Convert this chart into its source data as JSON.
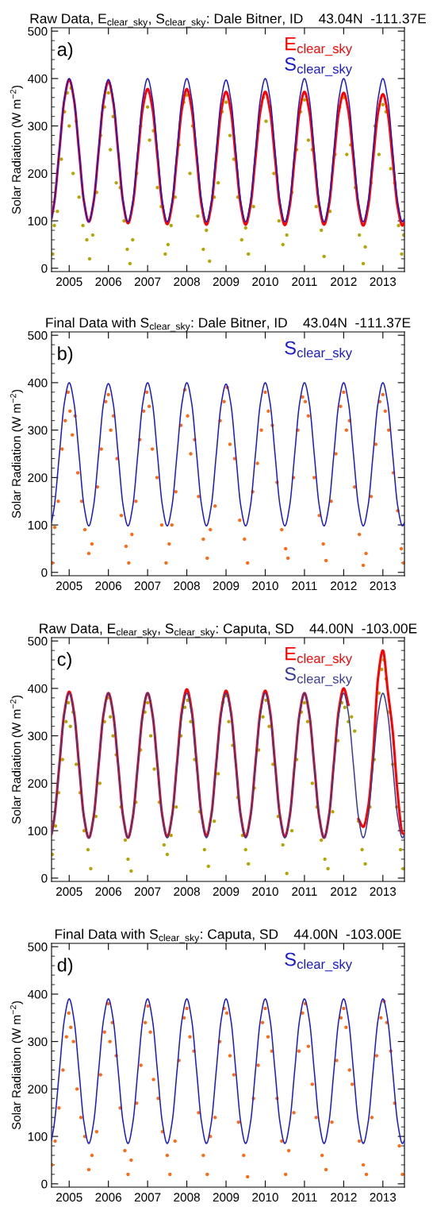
{
  "chart_data": [
    {
      "type": "scatter",
      "title": "Raw Data, E$_{clear_sky}$, S$_{clear_sky}$: Dale Bitner, ID    43.04N  -111.37E",
      "ylabel": "Solar Radiation (W m$^{−2}$)",
      "annotations": [
        "a)"
      ],
      "legend": "top right",
      "xlim": [
        2004.55,
        2013.55
      ],
      "xticks": [
        2005,
        2006,
        2007,
        2008,
        2009,
        2010,
        2011,
        2012,
        2013
      ],
      "ylim": [
        -7,
        507
      ],
      "yticks": [
        0,
        100,
        200,
        300,
        400,
        500
      ],
      "x": [
        2004.55,
        2004.625,
        2004.75,
        2004.875,
        2005,
        2005.125,
        2005.25,
        2005.375,
        2005.5,
        2005.625,
        2005.75,
        2005.875,
        2006,
        2006.125,
        2006.25,
        2006.375,
        2006.5,
        2006.625,
        2006.75,
        2006.875,
        2007,
        2007.125,
        2007.25,
        2007.375,
        2007.5,
        2007.625,
        2007.75,
        2007.875,
        2008,
        2008.125,
        2008.25,
        2008.375,
        2008.5,
        2008.625,
        2008.75,
        2008.875,
        2009,
        2009.125,
        2009.25,
        2009.375,
        2009.5,
        2009.625,
        2009.75,
        2009.875,
        2010,
        2010.125,
        2010.25,
        2010.375,
        2010.5,
        2010.625,
        2010.75,
        2010.875,
        2011,
        2011.125,
        2011.25,
        2011.375,
        2011.5,
        2011.625,
        2011.75,
        2011.875,
        2012,
        2012.125,
        2012.25,
        2012.375,
        2012.5,
        2012.625,
        2012.75,
        2012.875,
        2013,
        2013.125,
        2013.25,
        2013.375,
        2013.5,
        2013.55
      ],
      "series": [
        {
          "marker": "circle",
          "color": "#b5a500",
          "x": [
            2004.58,
            2004.62,
            2004.7,
            2004.8,
            2004.88,
            2004.95,
            2005.0,
            2005.05,
            2005.1,
            2005.18,
            2005.25,
            2005.35,
            2005.45,
            2005.52,
            2005.6,
            2005.7,
            2005.8,
            2005.9,
            2006.0,
            2006.05,
            2006.12,
            2006.2,
            2006.3,
            2006.4,
            2006.48,
            2006.55,
            2006.62,
            2006.72,
            2006.82,
            2006.92,
            2007.0,
            2007.05,
            2007.15,
            2007.25,
            2007.35,
            2007.45,
            2007.52,
            2007.6,
            2007.7,
            2007.8,
            2007.92,
            2008.0,
            2008.08,
            2008.15,
            2008.28,
            2008.42,
            2008.5,
            2008.58,
            2008.7,
            2008.8,
            2008.9,
            2009.0,
            2009.1,
            2009.2,
            2009.3,
            2009.4,
            2009.5,
            2009.57,
            2009.7,
            2009.82,
            2009.95,
            2010.02,
            2010.12,
            2010.22,
            2010.35,
            2010.45,
            2010.55,
            2010.68,
            2010.8,
            2010.9,
            2011.0,
            2011.1,
            2011.2,
            2011.3,
            2011.43,
            2011.5,
            2011.65,
            2011.78,
            2011.9,
            2012.0,
            2012.08,
            2012.18,
            2012.3,
            2012.4,
            2012.5,
            2012.55,
            2012.7,
            2012.8,
            2012.9,
            2013.0,
            2013.08,
            2013.2,
            2013.3,
            2013.4,
            2013.48,
            2013.53
          ],
          "values": [
            30,
            90,
            120,
            230,
            330,
            370,
            300,
            380,
            200,
            310,
            150,
            90,
            60,
            20,
            70,
            160,
            280,
            340,
            370,
            250,
            320,
            180,
            170,
            100,
            40,
            10,
            60,
            200,
            300,
            360,
            340,
            270,
            290,
            170,
            130,
            30,
            50,
            90,
            150,
            260,
            350,
            365,
            200,
            300,
            110,
            40,
            80,
            15,
            150,
            180,
            330,
            350,
            280,
            230,
            150,
            60,
            85,
            30,
            130,
            290,
            360,
            310,
            340,
            200,
            100,
            50,
            70,
            160,
            250,
            330,
            355,
            270,
            250,
            130,
            80,
            25,
            120,
            240,
            340,
            360,
            240,
            260,
            170,
            70,
            10,
            45,
            180,
            300,
            240,
            345,
            330,
            210,
            180,
            90,
            30,
            70
          ]
        },
        {
          "type": "line",
          "name": "E$_{clear_sky}$",
          "color": "#ff0000",
          "values": [
            105,
            142,
            248,
            354,
            398,
            354,
            248,
            142,
            98,
            141,
            246,
            351,
            394,
            350,
            245,
            139,
            95,
            136,
            237,
            337,
            378,
            337,
            236,
            135,
            93,
            135,
            236,
            336,
            378,
            336,
            235,
            134,
            92,
            133,
            232,
            331,
            372,
            331,
            232,
            133,
            92,
            133,
            232,
            331,
            372,
            331,
            232,
            132,
            91,
            132,
            232,
            331,
            372,
            331,
            232,
            133,
            92,
            133,
            231,
            329,
            370,
            329,
            230,
            131,
            90,
            130,
            229,
            327,
            367,
            327,
            229,
            130,
            90,
            97
          ]
        },
        {
          "type": "line",
          "name": "S$_{clear_sky}$",
          "color": "#1a1acc",
          "values": [
            105,
            142,
            249,
            356,
            400,
            356,
            249,
            142,
            98,
            142,
            249,
            356,
            398,
            355,
            248,
            141,
            98,
            142,
            249,
            356,
            400,
            356,
            249,
            142,
            98,
            142,
            249,
            356,
            400,
            356,
            249,
            142,
            98,
            141,
            248,
            354,
            397,
            354,
            248,
            141,
            98,
            142,
            249,
            356,
            400,
            356,
            249,
            142,
            98,
            142,
            249,
            356,
            400,
            356,
            249,
            142,
            98,
            142,
            249,
            356,
            400,
            356,
            249,
            142,
            98,
            142,
            249,
            356,
            400,
            356,
            249,
            142,
            98,
            105
          ]
        }
      ]
    },
    {
      "type": "scatter",
      "title": "Final Data with S$_{clear_sky}$: Dale Bitner, ID    43.04N  -111.37E",
      "ylabel": "Solar Radiation (W m$^{−2}$)",
      "annotations": [
        "b)"
      ],
      "legend": "top right",
      "xlim": [
        2004.55,
        2013.55
      ],
      "xticks": [
        2005,
        2006,
        2007,
        2008,
        2009,
        2010,
        2011,
        2012,
        2013
      ],
      "ylim": [
        -7,
        507
      ],
      "yticks": [
        0,
        100,
        200,
        300,
        400,
        500
      ],
      "x": [
        2004.55,
        2004.625,
        2004.75,
        2004.875,
        2005,
        2005.125,
        2005.25,
        2005.375,
        2005.5,
        2005.625,
        2005.75,
        2005.875,
        2006,
        2006.125,
        2006.25,
        2006.375,
        2006.5,
        2006.625,
        2006.75,
        2006.875,
        2007,
        2007.125,
        2007.25,
        2007.375,
        2007.5,
        2007.625,
        2007.75,
        2007.875,
        2008,
        2008.125,
        2008.25,
        2008.375,
        2008.5,
        2008.625,
        2008.75,
        2008.875,
        2009,
        2009.125,
        2009.25,
        2009.375,
        2009.5,
        2009.625,
        2009.75,
        2009.875,
        2010,
        2010.125,
        2010.25,
        2010.375,
        2010.5,
        2010.625,
        2010.75,
        2010.875,
        2011,
        2011.125,
        2011.25,
        2011.375,
        2011.5,
        2011.625,
        2011.75,
        2011.875,
        2012,
        2012.125,
        2012.25,
        2012.375,
        2012.5,
        2012.625,
        2012.75,
        2012.875,
        2013,
        2013.125,
        2013.25,
        2013.375,
        2013.5,
        2013.55
      ],
      "series": [
        {
          "marker": "circle",
          "color": "#ff6a10",
          "x": [
            2004.57,
            2004.63,
            2004.72,
            2004.82,
            2004.9,
            2004.97,
            2005.02,
            2005.08,
            2005.15,
            2005.22,
            2005.32,
            2005.4,
            2005.5,
            2005.58,
            2005.72,
            2005.82,
            2005.93,
            2006.0,
            2006.06,
            2006.13,
            2006.22,
            2006.33,
            2006.45,
            2006.52,
            2006.6,
            2006.7,
            2006.8,
            2006.9,
            2006.98,
            2007.04,
            2007.12,
            2007.24,
            2007.36,
            2007.47,
            2007.55,
            2007.62,
            2007.72,
            2007.85,
            2007.95,
            2008.02,
            2008.1,
            2008.2,
            2008.3,
            2008.42,
            2008.52,
            2008.6,
            2008.72,
            2008.85,
            2008.95,
            2009.03,
            2009.1,
            2009.22,
            2009.35,
            2009.47,
            2009.55,
            2009.68,
            2009.8,
            2009.9,
            2010.0,
            2010.08,
            2010.18,
            2010.3,
            2010.42,
            2010.52,
            2010.58,
            2010.72,
            2010.83,
            2010.95,
            2011.02,
            2011.1,
            2011.25,
            2011.38,
            2011.48,
            2011.55,
            2011.68,
            2011.8,
            2011.92,
            2012.0,
            2012.07,
            2012.15,
            2012.28,
            2012.4,
            2012.5,
            2012.57,
            2012.7,
            2012.82,
            2012.92,
            2013.0,
            2013.06,
            2013.15,
            2013.27,
            2013.38,
            2013.47,
            2013.53
          ],
          "values": [
            20,
            95,
            150,
            260,
            320,
            380,
            340,
            290,
            330,
            210,
            150,
            90,
            40,
            60,
            180,
            260,
            360,
            375,
            300,
            330,
            240,
            120,
            55,
            20,
            80,
            150,
            280,
            340,
            380,
            350,
            260,
            200,
            100,
            20,
            60,
            100,
            170,
            310,
            385,
            330,
            250,
            280,
            160,
            70,
            30,
            90,
            140,
            320,
            360,
            390,
            270,
            240,
            110,
            70,
            20,
            170,
            230,
            300,
            380,
            340,
            310,
            190,
            90,
            50,
            30,
            200,
            300,
            370,
            360,
            330,
            200,
            120,
            60,
            25,
            150,
            250,
            350,
            380,
            300,
            320,
            180,
            80,
            15,
            40,
            160,
            270,
            360,
            375,
            340,
            300,
            210,
            130,
            50,
            20
          ]
        },
        {
          "type": "line",
          "name": "S$_{clear_sky}$",
          "color": "#1a1acc",
          "values": [
            105,
            142,
            249,
            356,
            400,
            356,
            249,
            142,
            98,
            142,
            249,
            356,
            398,
            355,
            248,
            141,
            98,
            142,
            249,
            356,
            400,
            356,
            249,
            142,
            98,
            142,
            249,
            356,
            400,
            356,
            249,
            142,
            98,
            141,
            248,
            354,
            397,
            354,
            248,
            141,
            98,
            142,
            249,
            356,
            400,
            356,
            249,
            142,
            98,
            142,
            249,
            356,
            400,
            356,
            249,
            142,
            98,
            142,
            249,
            356,
            400,
            356,
            249,
            142,
            98,
            142,
            249,
            356,
            400,
            356,
            249,
            142,
            98,
            105
          ]
        }
      ]
    },
    {
      "type": "scatter",
      "title": "Raw Data, E$_{clear_sky}$, S$_{clear_sky}$: Caputa, SD    44.00N  -103.00E",
      "ylabel": "Solar Radiation (W m$^{−2}$)",
      "annotations": [
        "c)"
      ],
      "legend": "top right",
      "xlim": [
        2004.55,
        2013.55
      ],
      "xticks": [
        2005,
        2006,
        2007,
        2008,
        2009,
        2010,
        2011,
        2012,
        2013
      ],
      "ylim": [
        -7,
        507
      ],
      "yticks": [
        0,
        100,
        200,
        300,
        400,
        500
      ],
      "x": [
        2004.55,
        2004.625,
        2004.75,
        2004.875,
        2005,
        2005.125,
        2005.25,
        2005.375,
        2005.5,
        2005.625,
        2005.75,
        2005.875,
        2006,
        2006.125,
        2006.25,
        2006.375,
        2006.5,
        2006.625,
        2006.75,
        2006.875,
        2007,
        2007.125,
        2007.25,
        2007.375,
        2007.5,
        2007.625,
        2007.75,
        2007.875,
        2008,
        2008.125,
        2008.25,
        2008.375,
        2008.5,
        2008.625,
        2008.75,
        2008.875,
        2009,
        2009.125,
        2009.25,
        2009.375,
        2009.5,
        2009.625,
        2009.75,
        2009.875,
        2010,
        2010.125,
        2010.25,
        2010.375,
        2010.5,
        2010.625,
        2010.75,
        2010.875,
        2011,
        2011.125,
        2011.25,
        2011.375,
        2011.5,
        2011.625,
        2011.75,
        2011.875,
        2012,
        2012.125,
        2012.25,
        2012.375,
        2012.5,
        2012.625,
        2012.75,
        2012.875,
        2013,
        2013.125,
        2013.25,
        2013.375,
        2013.5,
        2013.55
      ],
      "series": [
        {
          "marker": "circle",
          "color": "#b5a500",
          "x": [
            2004.57,
            2004.65,
            2004.73,
            2004.83,
            2004.92,
            2004.98,
            2005.03,
            2005.1,
            2005.18,
            2005.28,
            2005.38,
            2005.48,
            2005.55,
            2005.68,
            2005.78,
            2005.9,
            2005.98,
            2006.05,
            2006.12,
            2006.2,
            2006.32,
            2006.43,
            2006.5,
            2006.58,
            2006.7,
            2006.82,
            2006.93,
            2007.0,
            2007.08,
            2007.17,
            2007.3,
            2007.42,
            2007.5,
            2007.6,
            2007.73,
            2007.85,
            2007.95,
            2008.02,
            2008.1,
            2008.2,
            2008.33,
            2008.45,
            2008.55,
            2008.7,
            2008.8,
            2008.92,
            2009.0,
            2009.07,
            2009.17,
            2009.3,
            2009.42,
            2009.5,
            2009.57,
            2009.72,
            2009.83,
            2009.94,
            2010.02,
            2010.1,
            2010.2,
            2010.33,
            2010.45,
            2010.55,
            2010.68,
            2010.8,
            2010.92,
            2011.0,
            2011.08,
            2011.2,
            2011.32,
            2011.43,
            2011.52,
            2011.6,
            2011.72,
            2011.85,
            2011.95,
            2012.03,
            2012.12,
            2012.2,
            2012.28,
            2012.38,
            2012.47,
            2012.55,
            2012.67,
            2012.78,
            2012.9,
            2012.97,
            2013.02,
            2013.08,
            2013.15,
            2013.25,
            2013.35,
            2013.45,
            2013.52
          ],
          "values": [
            50,
            110,
            180,
            250,
            330,
            370,
            320,
            350,
            240,
            180,
            100,
            60,
            20,
            130,
            200,
            330,
            380,
            340,
            300,
            260,
            150,
            80,
            40,
            15,
            160,
            270,
            350,
            370,
            300,
            230,
            160,
            70,
            50,
            90,
            150,
            300,
            360,
            375,
            330,
            250,
            140,
            60,
            25,
            120,
            220,
            370,
            385,
            330,
            280,
            170,
            90,
            60,
            30,
            190,
            270,
            340,
            375,
            320,
            240,
            130,
            70,
            10,
            100,
            250,
            350,
            370,
            330,
            200,
            150,
            80,
            40,
            20,
            140,
            290,
            370,
            360,
            330,
            340,
            310,
            120,
            60,
            30,
            150,
            250,
            390,
            440,
            460,
            420,
            350,
            240,
            150,
            60,
            20
          ]
        },
        {
          "type": "line",
          "name": "E$_{clear_sky}$",
          "color": "#ff0000",
          "values": [
            92,
            130,
            239,
            348,
            393,
            348,
            239,
            130,
            85,
            130,
            238,
            345,
            390,
            345,
            238,
            130,
            85,
            130,
            238,
            345,
            390,
            345,
            239,
            131,
            87,
            132,
            243,
            353,
            398,
            353,
            243,
            133,
            88,
            133,
            242,
            350,
            395,
            350,
            241,
            132,
            87,
            132,
            241,
            350,
            395,
            350,
            241,
            132,
            87,
            131,
            239,
            346,
            390,
            345,
            238,
            130,
            85,
            131,
            243,
            354,
            400,
            365,
            null,
            125,
            108,
            150,
            260,
            420,
            480,
            395,
            310,
            180,
            95,
            92
          ]
        },
        {
          "type": "line",
          "name": "S$_{clear_sky}$",
          "color": "#3a3a99",
          "values": [
            92,
            130,
            238,
            345,
            390,
            345,
            238,
            130,
            85,
            130,
            238,
            345,
            390,
            345,
            238,
            130,
            85,
            130,
            238,
            345,
            390,
            345,
            238,
            130,
            85,
            130,
            238,
            345,
            390,
            345,
            238,
            130,
            85,
            130,
            238,
            345,
            390,
            345,
            238,
            130,
            85,
            130,
            238,
            345,
            390,
            345,
            238,
            130,
            85,
            130,
            238,
            345,
            390,
            345,
            238,
            130,
            85,
            130,
            238,
            345,
            390,
            345,
            238,
            130,
            85,
            130,
            238,
            345,
            390,
            345,
            238,
            130,
            85,
            92
          ]
        }
      ]
    },
    {
      "type": "scatter",
      "title": "Final Data with S$_{clear_sky}$: Caputa, SD    44.00N  -103.00E",
      "ylabel": "Solar Radiation (W m$^{−2}$)",
      "annotations": [
        "d)"
      ],
      "legend": "top right",
      "xlim": [
        2004.55,
        2013.55
      ],
      "xticks": [
        2005,
        2006,
        2007,
        2008,
        2009,
        2010,
        2011,
        2012,
        2013
      ],
      "ylim": [
        -7,
        507
      ],
      "yticks": [
        0,
        100,
        200,
        300,
        400,
        500
      ],
      "x": [
        2004.55,
        2004.625,
        2004.75,
        2004.875,
        2005,
        2005.125,
        2005.25,
        2005.375,
        2005.5,
        2005.625,
        2005.75,
        2005.875,
        2006,
        2006.125,
        2006.25,
        2006.375,
        2006.5,
        2006.625,
        2006.75,
        2006.875,
        2007,
        2007.125,
        2007.25,
        2007.375,
        2007.5,
        2007.625,
        2007.75,
        2007.875,
        2008,
        2008.125,
        2008.25,
        2008.375,
        2008.5,
        2008.625,
        2008.75,
        2008.875,
        2009,
        2009.125,
        2009.25,
        2009.375,
        2009.5,
        2009.625,
        2009.75,
        2009.875,
        2010,
        2010.125,
        2010.25,
        2010.375,
        2010.5,
        2010.625,
        2010.75,
        2010.875,
        2011,
        2011.125,
        2011.25,
        2011.375,
        2011.5,
        2011.625,
        2011.75,
        2011.875,
        2012,
        2012.125,
        2012.25,
        2012.375,
        2012.5,
        2012.625,
        2012.75,
        2012.875,
        2013,
        2013.125,
        2013.25,
        2013.375,
        2013.5,
        2013.55
      ],
      "series": [
        {
          "marker": "circle",
          "color": "#ff6a10",
          "x": [
            2004.56,
            2004.64,
            2004.74,
            2004.84,
            2004.93,
            2004.99,
            2005.04,
            2005.11,
            2005.2,
            2005.3,
            2005.4,
            2005.5,
            2005.58,
            2005.7,
            2005.8,
            2005.9,
            2006.0,
            2006.04,
            2006.1,
            2006.2,
            2006.3,
            2006.42,
            2006.5,
            2006.58,
            2006.72,
            2006.83,
            2006.94,
            2007.01,
            2007.07,
            2007.15,
            2007.27,
            2007.38,
            2007.5,
            2007.57,
            2007.7,
            2007.8,
            2007.93,
            2008.0,
            2008.08,
            2008.18,
            2008.3,
            2008.42,
            2008.52,
            2008.6,
            2008.72,
            2008.84,
            2008.95,
            2009.02,
            2009.1,
            2009.2,
            2009.32,
            2009.45,
            2009.55,
            2009.7,
            2009.82,
            2009.93,
            2010.0,
            2010.07,
            2010.17,
            2010.3,
            2010.42,
            2010.52,
            2010.6,
            2010.73,
            2010.86,
            2010.95,
            2011.02,
            2011.1,
            2011.2,
            2011.3,
            2011.45,
            2011.55,
            2011.7,
            2011.82,
            2011.93,
            2012.0,
            2012.06,
            2012.15,
            2012.22,
            2012.4,
            2012.5,
            2012.58,
            2012.72,
            2012.84,
            2012.95,
            2013.03,
            2013.1,
            2013.2,
            2013.3,
            2013.42,
            2013.5
          ],
          "values": [
            40,
            90,
            160,
            240,
            310,
            360,
            330,
            300,
            200,
            140,
            100,
            30,
            60,
            110,
            230,
            320,
            380,
            300,
            340,
            270,
            160,
            70,
            20,
            50,
            170,
            250,
            340,
            375,
            320,
            220,
            180,
            110,
            60,
            20,
            90,
            260,
            350,
            370,
            310,
            280,
            150,
            60,
            20,
            100,
            140,
            300,
            370,
            360,
            270,
            230,
            130,
            60,
            15,
            180,
            250,
            340,
            370,
            310,
            280,
            180,
            90,
            20,
            70,
            150,
            280,
            360,
            380,
            290,
            210,
            140,
            60,
            30,
            130,
            260,
            350,
            370,
            330,
            240,
            210,
            90,
            40,
            20,
            140,
            270,
            350,
            385,
            340,
            280,
            170,
            80,
            20
          ]
        },
        {
          "type": "line",
          "name": "S$_{clear_sky}$",
          "color": "#1a1acc",
          "values": [
            92,
            130,
            238,
            345,
            390,
            345,
            238,
            130,
            85,
            130,
            238,
            345,
            390,
            345,
            238,
            130,
            85,
            130,
            238,
            345,
            390,
            345,
            238,
            130,
            85,
            130,
            238,
            345,
            390,
            345,
            238,
            130,
            85,
            130,
            238,
            345,
            390,
            345,
            238,
            130,
            85,
            130,
            238,
            345,
            390,
            345,
            238,
            130,
            85,
            130,
            238,
            345,
            390,
            345,
            238,
            130,
            85,
            130,
            238,
            345,
            390,
            345,
            238,
            130,
            85,
            130,
            238,
            345,
            390,
            345,
            238,
            130,
            85,
            92
          ]
        }
      ]
    }
  ]
}
